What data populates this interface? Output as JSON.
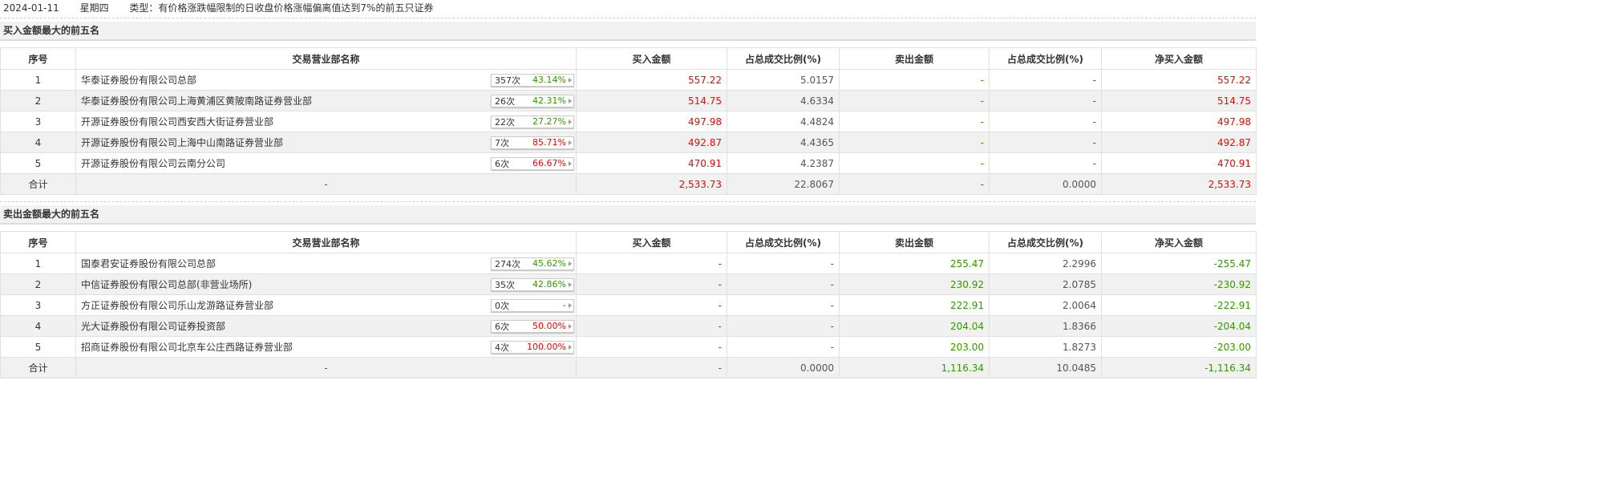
{
  "header": {
    "date": "2024-01-11",
    "weekday": "星期四",
    "type": "类型：有价格涨跌幅限制的日收盘价格涨幅偏离值达到7%的前五只证券"
  },
  "colors": {
    "up": "#ff0000",
    "down": "#339900"
  },
  "columns": [
    "序号",
    "交易营业部名称",
    "买入金额",
    "占总成交比例(%)",
    "卖出金额",
    "占总成交比例(%)",
    "净买入金额"
  ],
  "buy": {
    "title": "买入金额最大的前五名",
    "rows": [
      {
        "no": "1",
        "name": "华泰证券股份有限公司总部",
        "count": "357次",
        "rate": "43.14%",
        "rate_up": false,
        "buy": "557.22",
        "buy_pct": "5.0157",
        "sell": "-",
        "sell_pct": "-",
        "net": "557.22"
      },
      {
        "no": "2",
        "name": "华泰证券股份有限公司上海黄浦区黄陂南路证券营业部",
        "count": "26次",
        "rate": "42.31%",
        "rate_up": false,
        "buy": "514.75",
        "buy_pct": "4.6334",
        "sell": "-",
        "sell_pct": "-",
        "net": "514.75"
      },
      {
        "no": "3",
        "name": "开源证券股份有限公司西安西大街证券营业部",
        "count": "22次",
        "rate": "27.27%",
        "rate_up": false,
        "buy": "497.98",
        "buy_pct": "4.4824",
        "sell": "-",
        "sell_pct": "-",
        "net": "497.98"
      },
      {
        "no": "4",
        "name": "开源证券股份有限公司上海中山南路证券营业部",
        "count": "7次",
        "rate": "85.71%",
        "rate_up": true,
        "buy": "492.87",
        "buy_pct": "4.4365",
        "sell": "-",
        "sell_pct": "-",
        "net": "492.87"
      },
      {
        "no": "5",
        "name": "开源证券股份有限公司云南分公司",
        "count": "6次",
        "rate": "66.67%",
        "rate_up": true,
        "buy": "470.91",
        "buy_pct": "4.2387",
        "sell": "-",
        "sell_pct": "-",
        "net": "470.91"
      }
    ],
    "total": {
      "label": "合计",
      "name": "-",
      "buy": "2,533.73",
      "buy_pct": "22.8067",
      "sell": "-",
      "sell_pct": "0.0000",
      "net": "2,533.73"
    }
  },
  "sell": {
    "title": "卖出金额最大的前五名",
    "rows": [
      {
        "no": "1",
        "name": "国泰君安证券股份有限公司总部",
        "count": "274次",
        "rate": "45.62%",
        "rate_up": false,
        "buy": "-",
        "buy_pct": "-",
        "sell": "255.47",
        "sell_pct": "2.2996",
        "net": "-255.47"
      },
      {
        "no": "2",
        "name": "中信证券股份有限公司总部(非营业场所)",
        "count": "35次",
        "rate": "42.86%",
        "rate_up": false,
        "buy": "-",
        "buy_pct": "-",
        "sell": "230.92",
        "sell_pct": "2.0785",
        "net": "-230.92"
      },
      {
        "no": "3",
        "name": "方正证券股份有限公司乐山龙游路证券营业部",
        "count": "0次",
        "rate": "-",
        "rate_up": null,
        "buy": "-",
        "buy_pct": "-",
        "sell": "222.91",
        "sell_pct": "2.0064",
        "net": "-222.91"
      },
      {
        "no": "4",
        "name": "光大证券股份有限公司证券投资部",
        "count": "6次",
        "rate": "50.00%",
        "rate_up": true,
        "buy": "-",
        "buy_pct": "-",
        "sell": "204.04",
        "sell_pct": "1.8366",
        "net": "-204.04"
      },
      {
        "no": "5",
        "name": "招商证券股份有限公司北京车公庄西路证券营业部",
        "count": "4次",
        "rate": "100.00%",
        "rate_up": true,
        "buy": "-",
        "buy_pct": "-",
        "sell": "203.00",
        "sell_pct": "1.8273",
        "net": "-203.00"
      }
    ],
    "total": {
      "label": "合计",
      "name": "-",
      "buy": "-",
      "buy_pct": "0.0000",
      "sell": "1,116.34",
      "sell_pct": "10.0485",
      "net": "-1,116.34"
    }
  }
}
